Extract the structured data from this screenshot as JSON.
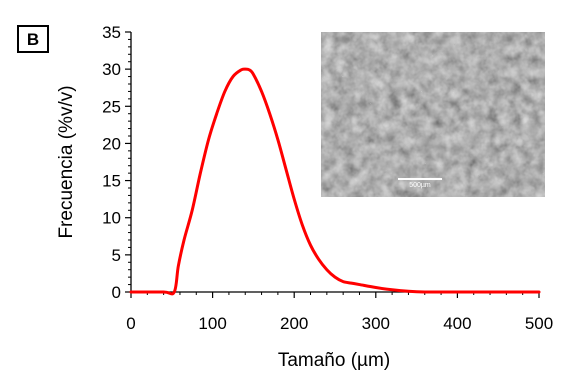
{
  "chart_data": {
    "type": "line",
    "panel_label": "B",
    "xlabel": "Tamaño (µm)",
    "ylabel": "Frecuencia (%v/v)",
    "xlim": [
      0,
      500
    ],
    "ylim": [
      0,
      35
    ],
    "x_ticks": [
      0,
      100,
      200,
      300,
      400,
      500
    ],
    "y_ticks": [
      0,
      5,
      10,
      15,
      20,
      25,
      30,
      35
    ],
    "x_minor_step": 20,
    "y_minor_step": 1,
    "grid": false,
    "legend": "none",
    "series": [
      {
        "color": "#ff0000",
        "x": [
          0,
          40,
          53,
          58,
          65,
          75,
          85,
          95,
          105,
          115,
          125,
          135,
          140,
          145,
          150,
          160,
          170,
          180,
          190,
          200,
          210,
          220,
          230,
          240,
          250,
          260,
          270,
          280,
          300,
          320,
          340,
          360,
          380,
          400,
          450,
          500
        ],
        "y": [
          0,
          0,
          0,
          3.5,
          7,
          11,
          16,
          20.5,
          24,
          27,
          29,
          29.9,
          30,
          29.9,
          29.3,
          27,
          24,
          20.5,
          16.5,
          12.5,
          9,
          6.3,
          4.4,
          3,
          2,
          1.4,
          1.2,
          1.0,
          0.6,
          0.3,
          0.1,
          0,
          0,
          0,
          0,
          0
        ]
      }
    ],
    "inset": {
      "kind": "sem-micrograph",
      "scale_label": "500µm"
    }
  }
}
